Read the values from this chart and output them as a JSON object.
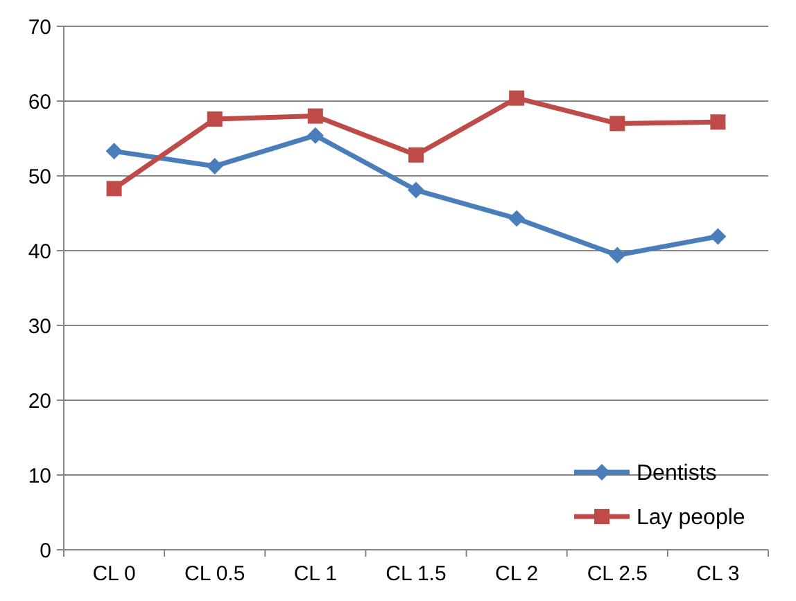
{
  "chart_data": {
    "type": "line",
    "categories": [
      "CL 0",
      "CL 0.5",
      "CL 1",
      "CL 1.5",
      "CL 2",
      "CL 2.5",
      "CL 3"
    ],
    "series": [
      {
        "name": "Dentists",
        "color": "#4a7ebb",
        "marker": "diamond",
        "values": [
          53.3,
          51.3,
          55.4,
          48.1,
          44.3,
          39.4,
          41.9
        ]
      },
      {
        "name": "Lay people",
        "color": "#be4b48",
        "marker": "square",
        "values": [
          48.3,
          57.6,
          58.0,
          52.8,
          60.4,
          57.0,
          57.2
        ]
      }
    ],
    "ylim": [
      0,
      70
    ],
    "yticks": [
      0,
      10,
      20,
      30,
      40,
      50,
      60,
      70
    ],
    "grid": "y",
    "legend": "bottom right"
  }
}
